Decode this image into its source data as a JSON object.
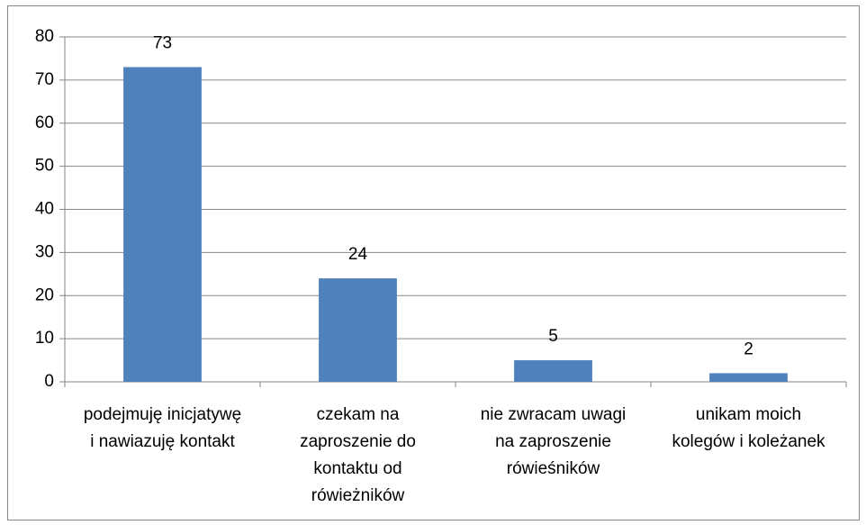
{
  "chart_data": {
    "type": "bar",
    "categories": [
      "podejmuję inicjatywę i nawiazuję kontakt",
      "czekam na zaproszenie do kontaktu od rówieżników",
      "nie zwracam uwagi na zaproszenie rówieśników",
      "unikam moich kolegów i koleżanek"
    ],
    "values": [
      73,
      24,
      5,
      2
    ],
    "color": "#4f81bd",
    "ylim": [
      0,
      80
    ],
    "yticks": [
      0,
      10,
      20,
      30,
      40,
      50,
      60,
      70,
      80
    ],
    "grid": true,
    "data_labels": true
  }
}
